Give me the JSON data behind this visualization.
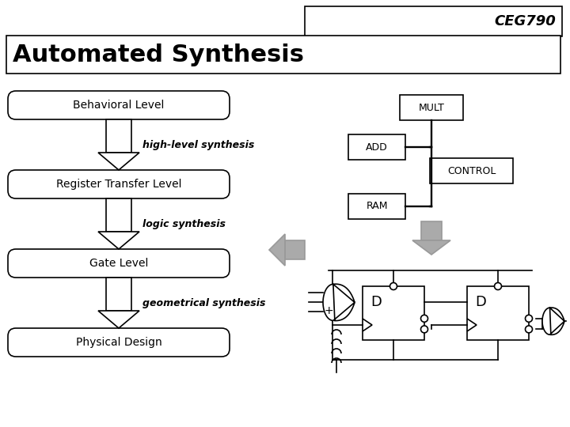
{
  "bg_color": "#ffffff",
  "lw": 1.2,
  "title": "Automated Synthesis",
  "ceg_text": "CEG790",
  "flow_labels": [
    "Behavioral Level",
    "Register Transfer Level",
    "Gate Level",
    "Physical Design"
  ],
  "arrow_labels": [
    "high-level synthesis",
    "logic synthesis",
    "geometrical synthesis"
  ],
  "rtl_labels": [
    "MULT",
    "ADD",
    "CONTROL",
    "RAM"
  ],
  "gray_color": "#999999",
  "gray_face": "#aaaaaa"
}
